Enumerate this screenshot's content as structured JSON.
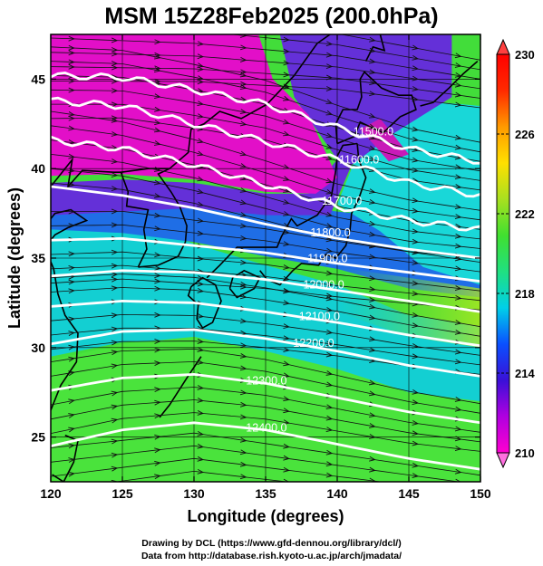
{
  "title": "MSM 15Z28Feb2025 (200.0hPa)",
  "xlabel": "Longitude (degrees)",
  "ylabel": "Latitude  (degrees)",
  "credits": [
    "Drawing by DCL (https://www.gfd-dennou.org/library/dcl/)",
    "Data from http://database.rish.kyoto-u.ac.jp/arch/jmadata/"
  ],
  "chart_data": {
    "type": "heatmap",
    "xlim": [
      120,
      150
    ],
    "ylim": [
      22.5,
      47.5
    ],
    "x_ticks": [
      120,
      125,
      130,
      135,
      140,
      145,
      150
    ],
    "y_ticks": [
      25,
      30,
      35,
      40,
      45
    ],
    "grid": true,
    "colorbar": {
      "range": [
        210,
        230
      ],
      "tick_labels": [
        210,
        214,
        218,
        222,
        226,
        230
      ],
      "colors": [
        "#ff00d0",
        "#b000e0",
        "#3a10d8",
        "#0a50ff",
        "#00d0e8",
        "#20e080",
        "#40e030",
        "#a8e020",
        "#ffe000",
        "#ff9a00",
        "#ff2a00",
        "#ff0000"
      ]
    },
    "contours": [
      {
        "label": "11500.0",
        "points": [
          [
            120,
            45.2
          ],
          [
            125,
            45.1
          ],
          [
            130,
            44.4
          ],
          [
            135,
            43.6
          ],
          [
            140,
            42.3
          ],
          [
            145,
            41.1
          ],
          [
            150,
            40.4
          ]
        ]
      },
      {
        "label": "11600.0",
        "points": [
          [
            120,
            43.8
          ],
          [
            125,
            43.5
          ],
          [
            130,
            42.5
          ],
          [
            135,
            41.5
          ],
          [
            140,
            40.5
          ],
          [
            145,
            39.2
          ],
          [
            150,
            38.5
          ]
        ]
      },
      {
        "label": "11700.0",
        "points": [
          [
            120,
            41.6
          ],
          [
            125,
            41.1
          ],
          [
            130,
            40.2
          ],
          [
            135,
            39.1
          ],
          [
            140,
            37.9
          ],
          [
            145,
            37.1
          ],
          [
            150,
            36.6
          ]
        ]
      },
      {
        "label": "11800.0",
        "points": [
          [
            120,
            39.0
          ],
          [
            125,
            38.5
          ],
          [
            130,
            37.8
          ],
          [
            135,
            36.9
          ],
          [
            140,
            36.1
          ],
          [
            145,
            35.5
          ],
          [
            150,
            35.0
          ]
        ]
      },
      {
        "label": "11900.0",
        "points": [
          [
            120,
            36.0
          ],
          [
            125,
            36.1
          ],
          [
            130,
            35.7
          ],
          [
            135,
            35.3
          ],
          [
            140,
            34.7
          ],
          [
            145,
            34.2
          ],
          [
            150,
            33.7
          ]
        ]
      },
      {
        "label": "12000.0",
        "points": [
          [
            120,
            34.0
          ],
          [
            125,
            34.3
          ],
          [
            130,
            34.2
          ],
          [
            135,
            33.8
          ],
          [
            140,
            33.2
          ],
          [
            145,
            32.6
          ],
          [
            150,
            32.0
          ]
        ]
      },
      {
        "label": "12100.0",
        "points": [
          [
            120,
            32.3
          ],
          [
            125,
            32.6
          ],
          [
            130,
            32.5
          ],
          [
            135,
            32.0
          ],
          [
            140,
            31.4
          ],
          [
            145,
            30.7
          ],
          [
            150,
            30.1
          ]
        ]
      },
      {
        "label": "12200.0",
        "points": [
          [
            120,
            30.2
          ],
          [
            125,
            30.9
          ],
          [
            130,
            31.0
          ],
          [
            135,
            30.5
          ],
          [
            140,
            29.8
          ],
          [
            145,
            29.0
          ],
          [
            150,
            28.4
          ]
        ]
      },
      {
        "label": "12300.0",
        "points": [
          [
            120,
            27.6
          ],
          [
            125,
            28.3
          ],
          [
            130,
            28.5
          ],
          [
            135,
            28.0
          ],
          [
            140,
            27.2
          ],
          [
            145,
            26.4
          ],
          [
            150,
            25.8
          ]
        ]
      },
      {
        "label": "12400.0",
        "points": [
          [
            120,
            24.5
          ],
          [
            125,
            25.4
          ],
          [
            130,
            25.8
          ],
          [
            135,
            25.4
          ],
          [
            140,
            24.6
          ],
          [
            145,
            23.8
          ],
          [
            150,
            23.2
          ]
        ]
      }
    ]
  }
}
